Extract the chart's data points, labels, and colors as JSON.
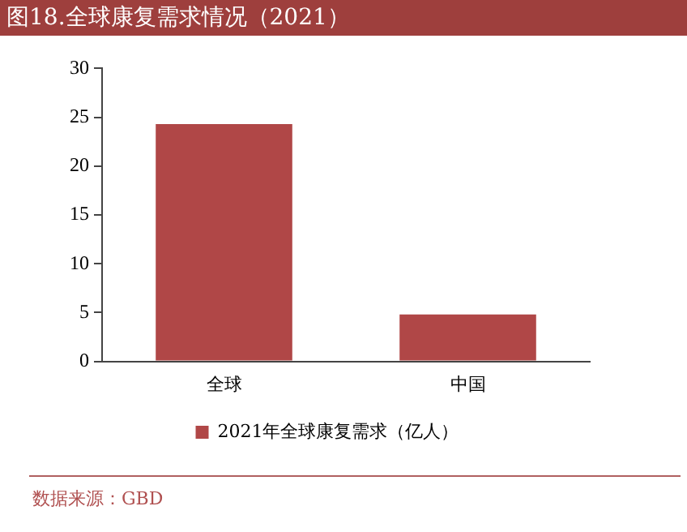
{
  "chart_data": {
    "type": "bar",
    "title": "图18.全球康复需求情况（2021）",
    "categories": [
      "全球",
      "中国"
    ],
    "series": [
      {
        "name": "2021年全球康复需求（亿人）",
        "color": "#b04747",
        "values": [
          24.3,
          4.8
        ]
      }
    ],
    "ylim": [
      0,
      30
    ],
    "yticks": [
      0,
      5,
      10,
      15,
      20,
      25,
      30
    ],
    "grid": false,
    "legend": "bottom",
    "annotations": [
      "数据来源：GBD"
    ]
  }
}
